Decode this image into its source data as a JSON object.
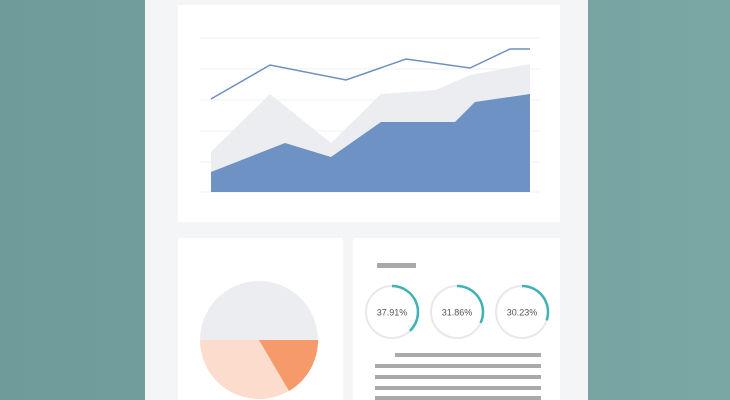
{
  "gauges": {
    "values": [
      37.91,
      31.86,
      30.23
    ],
    "value_labels": [
      "37.91%",
      "31.86%",
      "30.23%"
    ]
  }
}
